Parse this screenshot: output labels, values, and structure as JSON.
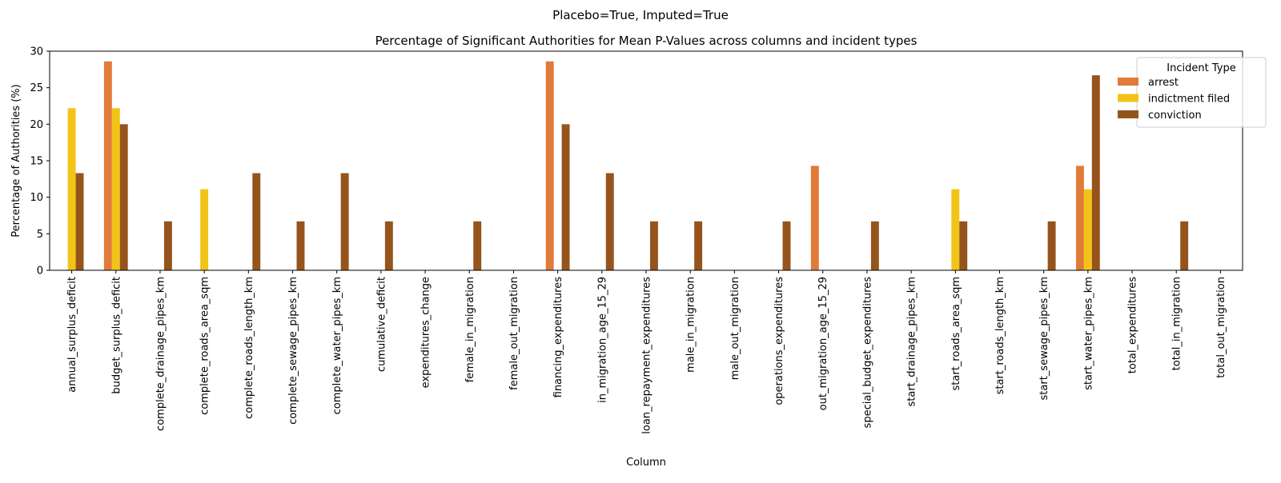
{
  "chart_data": {
    "type": "bar",
    "suptitle": "Placebo=True, Imputed=True",
    "title": "Percentage of Significant Authorities for Mean P-Values across columns and incident types",
    "xlabel": "Column",
    "ylabel": "Percentage of Authorities (%)",
    "ylim": [
      0,
      30
    ],
    "yticks": [
      "0",
      "5",
      "10",
      "15",
      "20",
      "25",
      "30"
    ],
    "grid": false,
    "legend": {
      "title": "Incident Type",
      "placement": "top-right"
    },
    "categories": [
      "annual_surplus_deficit",
      "budget_surplus_deficit",
      "complete_drainage_pipes_km",
      "complete_roads_area_sqm",
      "complete_roads_length_km",
      "complete_sewage_pipes_km",
      "complete_water_pipes_km",
      "cumulative_deficit",
      "expenditures_change",
      "female_in_migration",
      "female_out_migration",
      "financing_expenditures",
      "in_migration_age_15_29",
      "loan_repayment_expenditures",
      "male_in_migration",
      "male_out_migration",
      "operations_expenditures",
      "out_migration_age_15_29",
      "special_budget_expenditures",
      "start_drainage_pipes_km",
      "start_roads_area_sqm",
      "start_roads_length_km",
      "start_sewage_pipes_km",
      "start_water_pipes_km",
      "total_expenditures",
      "total_in_migration",
      "total_out_migration"
    ],
    "series": [
      {
        "name": "arrest",
        "color": "#e07b39",
        "values": [
          0,
          28.6,
          0,
          0,
          0,
          0,
          0,
          0,
          0,
          0,
          0,
          28.6,
          0,
          0,
          0,
          0,
          0,
          14.3,
          0,
          0,
          0,
          0,
          0,
          14.3,
          0,
          0,
          0
        ]
      },
      {
        "name": "indictment filed",
        "color": "#f2c417",
        "values": [
          22.2,
          22.2,
          0,
          11.1,
          0,
          0,
          0,
          0,
          0,
          0,
          0,
          0,
          0,
          0,
          0,
          0,
          0,
          0,
          0,
          0,
          11.1,
          0,
          0,
          11.1,
          0,
          0,
          0
        ]
      },
      {
        "name": "conviction",
        "color": "#95541c",
        "values": [
          13.3,
          20.0,
          6.7,
          0,
          13.3,
          6.7,
          13.3,
          6.7,
          0,
          6.7,
          0,
          20.0,
          13.3,
          6.7,
          6.7,
          0,
          6.7,
          0,
          6.7,
          0,
          6.7,
          0,
          6.7,
          26.7,
          0,
          6.7,
          0
        ]
      }
    ]
  }
}
